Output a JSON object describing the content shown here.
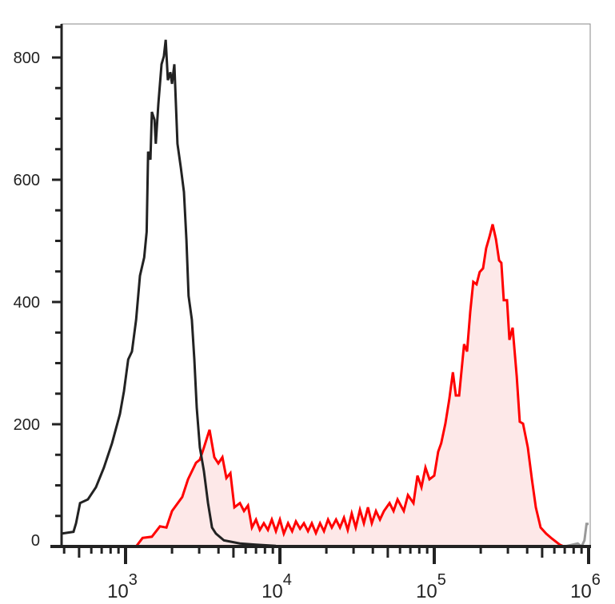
{
  "chart_data": {
    "type": "area",
    "title": "",
    "xlabel": "",
    "ylabel": "",
    "x_scale": "log",
    "xlim": [
      385,
      1000000
    ],
    "ylim": [
      0,
      850
    ],
    "grid": false,
    "x_ticks": [
      {
        "base": "10",
        "exp": "3",
        "value": 1000
      },
      {
        "base": "10",
        "exp": "4",
        "value": 10000
      },
      {
        "base": "10",
        "exp": "5",
        "value": 100000
      },
      {
        "base": "10",
        "exp": "6",
        "value": 1000000
      }
    ],
    "y_ticks": [
      "0",
      "200",
      "400",
      "600",
      "800"
    ],
    "y_minor_step": 50,
    "series": [
      {
        "color": "#ff0000",
        "fill": "#fde8e8",
        "filled": true,
        "points": [
          [
            1170,
            0
          ],
          [
            1290,
            14
          ],
          [
            1480,
            16
          ],
          [
            1670,
            33
          ],
          [
            1840,
            31
          ],
          [
            2000,
            58
          ],
          [
            2330,
            81
          ],
          [
            2540,
            110
          ],
          [
            2860,
            137
          ],
          [
            3030,
            142
          ],
          [
            3220,
            162
          ],
          [
            3500,
            191
          ],
          [
            3760,
            146
          ],
          [
            3990,
            136
          ],
          [
            4240,
            146
          ],
          [
            4500,
            112
          ],
          [
            4780,
            120
          ],
          [
            5070,
            64
          ],
          [
            5510,
            71
          ],
          [
            5850,
            58
          ],
          [
            6210,
            67
          ],
          [
            6590,
            31
          ],
          [
            7000,
            44
          ],
          [
            7410,
            27
          ],
          [
            7870,
            38
          ],
          [
            8360,
            27
          ],
          [
            8870,
            44
          ],
          [
            9420,
            25
          ],
          [
            10000,
            44
          ],
          [
            10600,
            21
          ],
          [
            11300,
            38
          ],
          [
            12000,
            25
          ],
          [
            12700,
            41
          ],
          [
            13500,
            29
          ],
          [
            14300,
            38
          ],
          [
            15200,
            25
          ],
          [
            16100,
            38
          ],
          [
            17100,
            22
          ],
          [
            18200,
            38
          ],
          [
            19300,
            25
          ],
          [
            20500,
            44
          ],
          [
            21700,
            31
          ],
          [
            23100,
            44
          ],
          [
            24500,
            31
          ],
          [
            26000,
            47
          ],
          [
            27500,
            27
          ],
          [
            29200,
            54
          ],
          [
            31000,
            31
          ],
          [
            33000,
            60
          ],
          [
            35000,
            38
          ],
          [
            37200,
            64
          ],
          [
            39400,
            38
          ],
          [
            41900,
            58
          ],
          [
            44500,
            44
          ],
          [
            47200,
            58
          ],
          [
            51300,
            71
          ],
          [
            54500,
            58
          ],
          [
            57800,
            77
          ],
          [
            63500,
            58
          ],
          [
            67500,
            84
          ],
          [
            73300,
            71
          ],
          [
            77800,
            116
          ],
          [
            82600,
            97
          ],
          [
            87700,
            129
          ],
          [
            93100,
            110
          ],
          [
            100000,
            116
          ],
          [
            106000,
            155
          ],
          [
            111000,
            169
          ],
          [
            118000,
            201
          ],
          [
            125000,
            240
          ],
          [
            132000,
            285
          ],
          [
            138000,
            247
          ],
          [
            145000,
            247
          ],
          [
            156000,
            331
          ],
          [
            163000,
            319
          ],
          [
            171000,
            384
          ],
          [
            179000,
            433
          ],
          [
            188000,
            429
          ],
          [
            197000,
            449
          ],
          [
            207000,
            455
          ],
          [
            217000,
            488
          ],
          [
            228000,
            507
          ],
          [
            239000,
            527
          ],
          [
            251000,
            503
          ],
          [
            263000,
            468
          ],
          [
            272000,
            464
          ],
          [
            282000,
            403
          ],
          [
            296000,
            403
          ],
          [
            307000,
            338
          ],
          [
            322000,
            358
          ],
          [
            342000,
            279
          ],
          [
            358000,
            204
          ],
          [
            376000,
            201
          ],
          [
            404000,
            162
          ],
          [
            429000,
            110
          ],
          [
            455000,
            64
          ],
          [
            489000,
            31
          ],
          [
            531000,
            21
          ],
          [
            578000,
            13
          ],
          [
            650000,
            3
          ],
          [
            690000,
            0
          ]
        ]
      },
      {
        "color": "#222222",
        "filled": false,
        "points": [
          [
            385,
            21
          ],
          [
            460,
            24
          ],
          [
            478,
            38
          ],
          [
            507,
            71
          ],
          [
            570,
            77
          ],
          [
            643,
            97
          ],
          [
            724,
            129
          ],
          [
            817,
            169
          ],
          [
            920,
            217
          ],
          [
            977,
            254
          ],
          [
            1040,
            306
          ],
          [
            1100,
            319
          ],
          [
            1170,
            371
          ],
          [
            1240,
            443
          ],
          [
            1320,
            473
          ],
          [
            1370,
            515
          ],
          [
            1400,
            646
          ],
          [
            1450,
            633
          ],
          [
            1480,
            711
          ],
          [
            1540,
            698
          ],
          [
            1570,
            659
          ],
          [
            1630,
            724
          ],
          [
            1710,
            789
          ],
          [
            1770,
            802
          ],
          [
            1820,
            829
          ],
          [
            1880,
            763
          ],
          [
            1950,
            776
          ],
          [
            2000,
            757
          ],
          [
            2070,
            789
          ],
          [
            2170,
            659
          ],
          [
            2280,
            620
          ],
          [
            2390,
            580
          ],
          [
            2480,
            502
          ],
          [
            2560,
            410
          ],
          [
            2690,
            371
          ],
          [
            2790,
            306
          ],
          [
            2890,
            227
          ],
          [
            3030,
            162
          ],
          [
            3220,
            123
          ],
          [
            3420,
            71
          ],
          [
            3630,
            31
          ],
          [
            3850,
            21
          ],
          [
            4340,
            10
          ],
          [
            5510,
            5
          ],
          [
            7000,
            3
          ],
          [
            9420,
            1
          ]
        ]
      },
      {
        "color": "#999999",
        "filled": false,
        "points": [
          [
            385,
            0
          ],
          [
            700000,
            0
          ],
          [
            850000,
            5
          ],
          [
            900000,
            0
          ],
          [
            940000,
            10
          ],
          [
            970000,
            37
          ],
          [
            1000000,
            37
          ]
        ]
      }
    ]
  }
}
